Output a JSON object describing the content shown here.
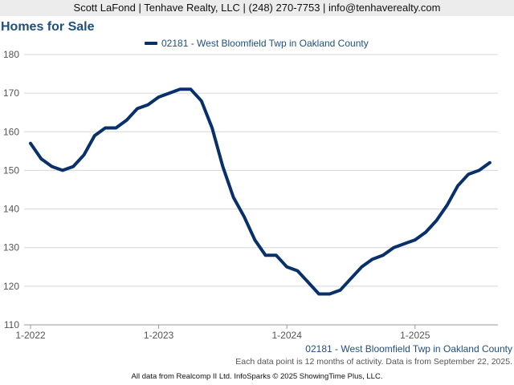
{
  "header": {
    "contact": "Scott LaFond | Tenhave Realty, LLC | (248) 270-7753 | info@tenhaverealty.com"
  },
  "chart_data": {
    "type": "line",
    "title": "Homes for Sale",
    "xlabel": "",
    "ylabel": "",
    "x_ticks": [
      "1-2022",
      "1-2023",
      "1-2024",
      "1-2025"
    ],
    "y_ticks": [
      110,
      120,
      130,
      140,
      150,
      160,
      170,
      180
    ],
    "ylim": [
      110,
      180
    ],
    "grid": "horizontal",
    "legend_position": "top",
    "series": [
      {
        "name": "02181 - West Bloomfield Twp in Oakland County",
        "color": "#08306b",
        "x": [
          "2022-01",
          "2022-02",
          "2022-03",
          "2022-04",
          "2022-05",
          "2022-06",
          "2022-07",
          "2022-08",
          "2022-09",
          "2022-10",
          "2022-11",
          "2022-12",
          "2023-01",
          "2023-02",
          "2023-03",
          "2023-04",
          "2023-05",
          "2023-06",
          "2023-07",
          "2023-08",
          "2023-09",
          "2023-10",
          "2023-11",
          "2023-12",
          "2024-01",
          "2024-02",
          "2024-03",
          "2024-04",
          "2024-05",
          "2024-06",
          "2024-07",
          "2024-08",
          "2024-09",
          "2024-10",
          "2024-11",
          "2024-12",
          "2025-01",
          "2025-02",
          "2025-03",
          "2025-04",
          "2025-05",
          "2025-06",
          "2025-07",
          "2025-08"
        ],
        "values": [
          157,
          153,
          151,
          150,
          151,
          154,
          159,
          161,
          161,
          163,
          166,
          167,
          169,
          170,
          171,
          171,
          168,
          161,
          151,
          143,
          138,
          132,
          128,
          128,
          125,
          124,
          121,
          118,
          118,
          119,
          122,
          125,
          127,
          128,
          130,
          131,
          132,
          134,
          137,
          141,
          146,
          149,
          150,
          152
        ]
      }
    ]
  },
  "footer": {
    "series_label": "02181 - West Bloomfield Twp in Oakland County",
    "note": "Each data point is 12 months of activity. Data is from September 22, 2025.",
    "source": "All data from Realcomp II Ltd. InfoSparks © 2025 ShowingTime Plus, LLC."
  }
}
